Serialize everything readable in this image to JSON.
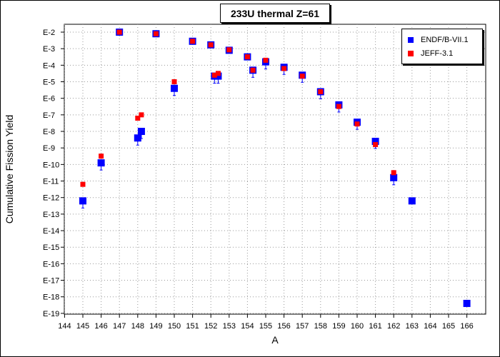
{
  "chart_data": {
    "type": "scatter",
    "title": "233U thermal Z=61",
    "xlabel": "A",
    "ylabel": "Cumulative Fission Yield",
    "xlim": [
      144,
      167
    ],
    "x_ticks": [
      144,
      145,
      146,
      147,
      148,
      149,
      150,
      151,
      152,
      153,
      154,
      155,
      156,
      157,
      158,
      159,
      160,
      161,
      162,
      163,
      164,
      165,
      166
    ],
    "y_scale": "log",
    "ylim": [
      "1e-19",
      "1e-2"
    ],
    "y_tick_labels": [
      "E-2",
      "E-3",
      "E-4",
      "E-5",
      "E-6",
      "E-7",
      "E-8",
      "E-9",
      "E-10",
      "E-11",
      "E-12",
      "E-13",
      "E-14",
      "E-15",
      "E-16",
      "E-17",
      "E-18",
      "E-19"
    ],
    "grid": true,
    "legend_position": "top-right",
    "series": [
      {
        "name": "ENDF/B-VII.1",
        "color": "#0000ff",
        "marker": "square",
        "points": [
          {
            "x": 145,
            "y": 6.3e-13,
            "err_low": 2e-13
          },
          {
            "x": 146,
            "y": 1.25e-10,
            "err_low": 2e-10
          },
          {
            "x": 147,
            "y": 0.01
          },
          {
            "x": 148,
            "y": 4e-09,
            "err_low": 8e-09
          },
          {
            "x": 148.2,
            "y": 1e-08,
            "err_low": 2e-08
          },
          {
            "x": 149,
            "y": 0.008
          },
          {
            "x": 150,
            "y": 4e-06,
            "err_low": 8e-06
          },
          {
            "x": 151,
            "y": 0.0028
          },
          {
            "x": 152,
            "y": 0.0017
          },
          {
            "x": 152.2,
            "y": 2.2e-05,
            "err_low": 4e-05
          },
          {
            "x": 152.4,
            "y": 2.2e-05,
            "err_low": 4e-05
          },
          {
            "x": 153,
            "y": 0.0008
          },
          {
            "x": 154,
            "y": 0.00032
          },
          {
            "x": 154.3,
            "y": 5e-05,
            "err_low": 0.0001
          },
          {
            "x": 155,
            "y": 0.00016,
            "err_low": 0.0003
          },
          {
            "x": 156,
            "y": 7.5e-05,
            "err_low": 0.00015
          },
          {
            "x": 157,
            "y": 2.5e-05,
            "err_low": 5e-05
          },
          {
            "x": 158,
            "y": 2.5e-06,
            "err_low": 5e-06
          },
          {
            "x": 159,
            "y": 4e-07,
            "err_low": 8e-07
          },
          {
            "x": 160,
            "y": 3.6e-08,
            "err_low": 7e-08
          },
          {
            "x": 161,
            "y": 2.5e-09,
            "err_low": 5e-09
          },
          {
            "x": 162,
            "y": 1.6e-11,
            "err_low": 3e-11
          },
          {
            "x": 163,
            "y": 6.3e-13
          },
          {
            "x": 166,
            "y": 4e-19
          }
        ]
      },
      {
        "name": "JEFF-3.1",
        "color": "#ff0000",
        "marker": "square",
        "points": [
          {
            "x": 145,
            "y": 6.3e-12
          },
          {
            "x": 146,
            "y": 3.2e-10
          },
          {
            "x": 147,
            "y": 0.01
          },
          {
            "x": 148,
            "y": 6.3e-08
          },
          {
            "x": 148.2,
            "y": 1e-07
          },
          {
            "x": 149,
            "y": 0.008
          },
          {
            "x": 150,
            "y": 1e-05
          },
          {
            "x": 151,
            "y": 0.0028
          },
          {
            "x": 152,
            "y": 0.0017
          },
          {
            "x": 152.2,
            "y": 2.5e-05
          },
          {
            "x": 152.4,
            "y": 3.2e-05
          },
          {
            "x": 153,
            "y": 0.00085
          },
          {
            "x": 154,
            "y": 0.00032
          },
          {
            "x": 154.3,
            "y": 5e-05
          },
          {
            "x": 155,
            "y": 0.0002
          },
          {
            "x": 156,
            "y": 6.3e-05
          },
          {
            "x": 157,
            "y": 2.2e-05
          },
          {
            "x": 158,
            "y": 2.5e-06
          },
          {
            "x": 159,
            "y": 3.2e-07
          },
          {
            "x": 160,
            "y": 2.8e-08
          },
          {
            "x": 161,
            "y": 1.6e-09
          },
          {
            "x": 162,
            "y": 3.2e-11
          }
        ]
      }
    ]
  }
}
